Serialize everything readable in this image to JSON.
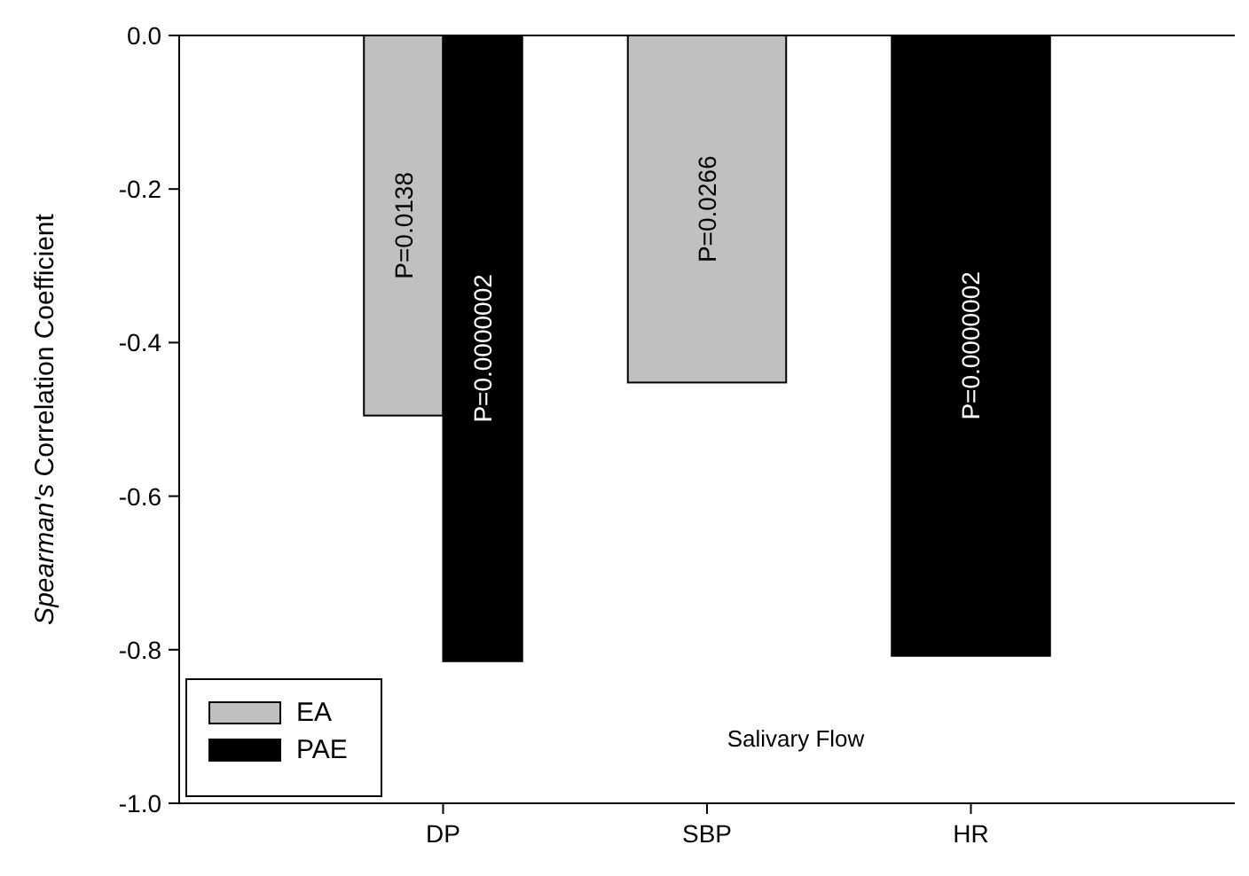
{
  "chart_data": {
    "type": "bar",
    "xlabel": "Salivary Flow",
    "ylabel": "Spearman's Correlation Coefficient",
    "categories": [
      "DP",
      "SBP",
      "HR"
    ],
    "series": [
      {
        "name": "EA",
        "color": "#c0c0c0",
        "values": [
          -0.495,
          -0.452,
          null
        ]
      },
      {
        "name": "PAE",
        "color": "#000000",
        "values": [
          -0.815,
          null,
          -0.808
        ]
      }
    ],
    "annotations": [
      "P=0.0138",
      "P=0.0000002",
      "P=0.0266",
      "P=0.0000002"
    ],
    "ylim": [
      -1.0,
      0.0
    ],
    "yticks": [
      {
        "value": -1.0,
        "label": "-1.0"
      },
      -0.8,
      -0.6,
      -0.4,
      -0.2,
      {
        "value": 0.0,
        "label": "0.0"
      }
    ],
    "legend": "bottom left"
  }
}
